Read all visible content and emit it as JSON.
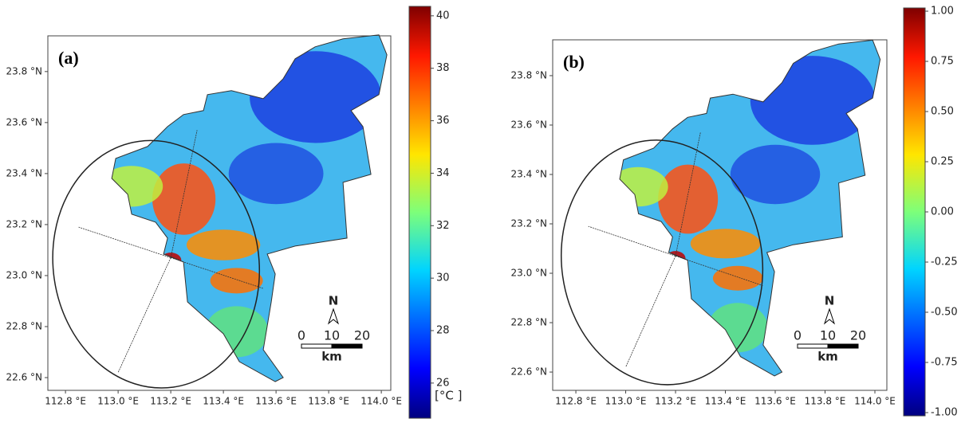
{
  "panels": [
    {
      "label": "(a)",
      "xlim": [
        112.733,
        114.036
      ],
      "xticks": [
        {
          "value": 112.8,
          "label": "112.8 °E"
        },
        {
          "value": 113.0,
          "label": "113.0 °E"
        },
        {
          "value": 113.2,
          "label": "113.2 °E"
        },
        {
          "value": 113.4,
          "label": "113.4 °E"
        },
        {
          "value": 113.6,
          "label": "113.6 °E"
        },
        {
          "value": 113.8,
          "label": "113.8 °E"
        },
        {
          "value": 114.0,
          "label": "114.0 °E"
        }
      ],
      "ylim": [
        22.55,
        23.94
      ],
      "yticks": [
        {
          "value": 22.6,
          "label": "22.6 °N"
        },
        {
          "value": 22.8,
          "label": "22.8 °N"
        },
        {
          "value": 23.0,
          "label": "23.0 °N"
        },
        {
          "value": 23.2,
          "label": "23.2 °N"
        },
        {
          "value": 23.4,
          "label": "23.4 °N"
        },
        {
          "value": 23.6,
          "label": "23.6 °N"
        },
        {
          "value": 23.8,
          "label": "23.8 °N"
        }
      ],
      "colorbar": {
        "lim": [
          24.66,
          40.36
        ],
        "ticks": [
          26,
          28,
          30,
          32,
          34,
          36,
          38,
          40
        ],
        "unit": "[°C ]"
      },
      "north": "N",
      "scale_labels": [
        "0",
        "10",
        "20"
      ],
      "scale_unit": "km"
    },
    {
      "label": "(b)",
      "xlim": [
        112.707,
        114.048
      ],
      "xticks": [
        {
          "value": 112.8,
          "label": "112.8 °E"
        },
        {
          "value": 113.0,
          "label": "113.0 °E"
        },
        {
          "value": 113.2,
          "label": "113.2 °E"
        },
        {
          "value": 113.4,
          "label": "113.4 °E"
        },
        {
          "value": 113.6,
          "label": "113.6 °E"
        },
        {
          "value": 113.8,
          "label": "113.8 °E"
        },
        {
          "value": 114.0,
          "label": "114.0 °E"
        }
      ],
      "ylim": [
        22.526,
        23.945
      ],
      "yticks": [
        {
          "value": 22.6,
          "label": "22.6 °N"
        },
        {
          "value": 22.8,
          "label": "22.8 °N"
        },
        {
          "value": 23.0,
          "label": "23.0 °N"
        },
        {
          "value": 23.2,
          "label": "23.2 °N"
        },
        {
          "value": 23.4,
          "label": "23.4 °N"
        },
        {
          "value": 23.6,
          "label": "23.6 °N"
        },
        {
          "value": 23.8,
          "label": "23.8 °N"
        }
      ],
      "colorbar": {
        "lim": [
          -1.016,
          1.016
        ],
        "ticks": [
          {
            "value": -1,
            "label": "-1.00"
          },
          {
            "value": -0.75,
            "label": "-0.75"
          },
          {
            "value": -0.5,
            "label": "-0.50"
          },
          {
            "value": -0.25,
            "label": "-0.25"
          },
          {
            "value": 0,
            "label": "0.00"
          },
          {
            "value": 0.25,
            "label": "0.25"
          },
          {
            "value": 0.5,
            "label": "0.50"
          },
          {
            "value": 0.75,
            "label": "0.75"
          },
          {
            "value": 1,
            "label": "1.00"
          }
        ]
      },
      "north": "N",
      "scale_labels": [
        "0",
        "10",
        "20"
      ],
      "scale_unit": "km"
    }
  ]
}
